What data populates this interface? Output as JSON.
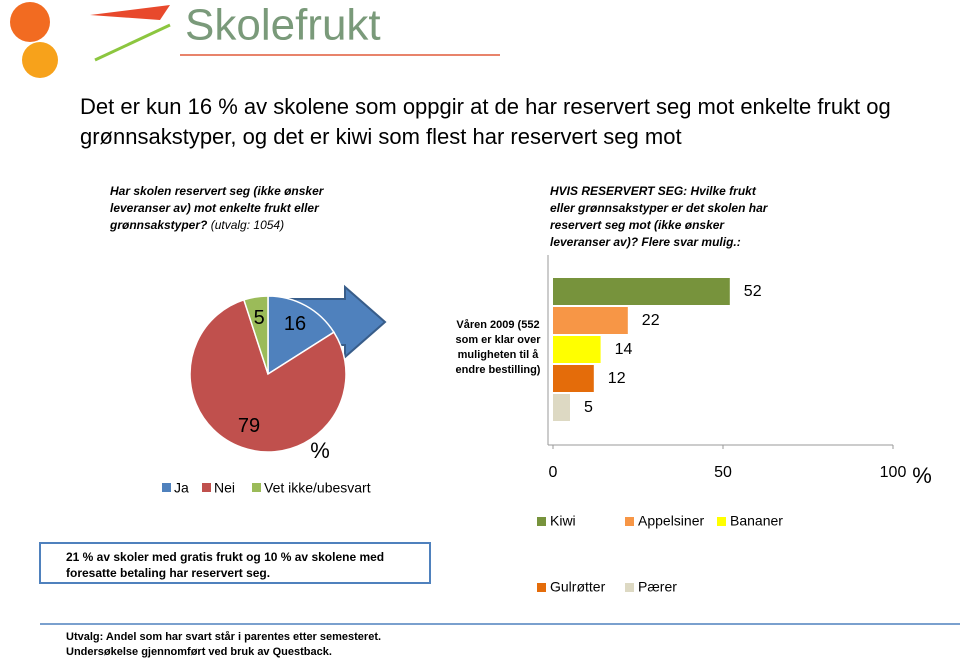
{
  "header": {
    "logo": "Skolefrukt",
    "title": "Det er kun 16 % av skolene som oppgir at de har reservert seg mot enkelte frukt og grønnsakstyper, og det er kiwi som flest har reservert seg mot"
  },
  "chart_data": [
    {
      "type": "pie",
      "title": "Har skolen reservert seg (ikke ønsker leveranser av) mot enkelte frukt eller grønnsakstyper?",
      "subtitle": "(utvalg: 1054)",
      "categories": [
        "Ja",
        "Nei",
        "Vet ikke/ubesvart"
      ],
      "values": [
        16,
        79,
        5
      ],
      "colors": [
        "#4f81bd",
        "#c0504d",
        "#9bbb59"
      ],
      "annotation": "%"
    },
    {
      "type": "hbar",
      "title": "HVIS RESERVERT SEG: Hvilke frukt eller grønnsakstyper er det skolen har reservert seg mot (ikke ønsker leveranser av)? Flere svar mulig.:",
      "categories": [
        "Våren 2009 (552 som er klar over muligheten til å endre bestilling)"
      ],
      "series": [
        {
          "name": "Kiwi",
          "color": "#77933c",
          "values": [
            52
          ]
        },
        {
          "name": "Appelsiner",
          "color": "#f79646",
          "values": [
            22
          ]
        },
        {
          "name": "Bananer",
          "color": "#ffff00",
          "values": [
            14
          ]
        },
        {
          "name": "Gulrøtter",
          "color": "#e46c0a",
          "values": [
            12
          ]
        },
        {
          "name": "Pærer",
          "color": "#ddd9c3",
          "values": [
            5
          ]
        }
      ],
      "xlim": [
        0,
        100
      ],
      "xticks": [
        0,
        50,
        100
      ],
      "xlabel": "%"
    }
  ],
  "notes": {
    "box": "21 % av skoler med gratis frukt og 10 % av skolene med foresatte betaling har reservert seg.",
    "footer": [
      "Utvalg: Andel som har svart står i parentes etter semesteret.",
      "Undersøkelse gjennomført ved bruk av Questback."
    ]
  }
}
